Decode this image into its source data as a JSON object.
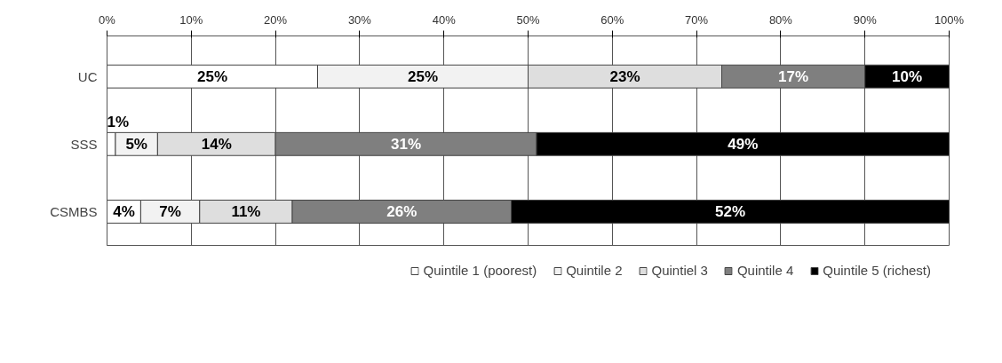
{
  "chart_data": {
    "type": "bar",
    "orientation": "horizontal",
    "stacked": true,
    "categories": [
      "UC",
      "SSS",
      "CSMBS"
    ],
    "series": [
      {
        "name": "Quintile 1 (poorest)",
        "color": "#ffffff",
        "values": [
          25,
          1,
          4
        ],
        "value_labels": [
          "25%",
          "1%",
          "4%"
        ]
      },
      {
        "name": "Quintile 2",
        "color": "#f2f2f2",
        "values": [
          25,
          5,
          7
        ],
        "value_labels": [
          "25%",
          "5%",
          "7%"
        ]
      },
      {
        "name": "Quintiel 3",
        "color": "#dedede",
        "values": [
          23,
          14,
          11
        ],
        "value_labels": [
          "23%",
          "14%",
          "11%"
        ]
      },
      {
        "name": "Quintile 4",
        "color": "#7f7f7f",
        "values": [
          17,
          31,
          26
        ],
        "value_labels": [
          "17%",
          "31%",
          "26%"
        ]
      },
      {
        "name": "Quintile 5 (richest)",
        "color": "#000000",
        "values": [
          10,
          49,
          52
        ],
        "value_labels": [
          "10%",
          "49%",
          "52%"
        ]
      }
    ],
    "xlim": [
      0,
      100
    ],
    "xticks": [
      {
        "value": 0,
        "label": "0%"
      },
      {
        "value": 10,
        "label": "10%"
      },
      {
        "value": 20,
        "label": "20%"
      },
      {
        "value": 30,
        "label": "30%"
      },
      {
        "value": 40,
        "label": "40%"
      },
      {
        "value": 50,
        "label": "50%"
      },
      {
        "value": 60,
        "label": "60%"
      },
      {
        "value": 70,
        "label": "70%"
      },
      {
        "value": 80,
        "label": "80%"
      },
      {
        "value": 90,
        "label": "90%"
      },
      {
        "value": 100,
        "label": "100%"
      }
    ],
    "grid": "x",
    "legend": "bottom"
  }
}
